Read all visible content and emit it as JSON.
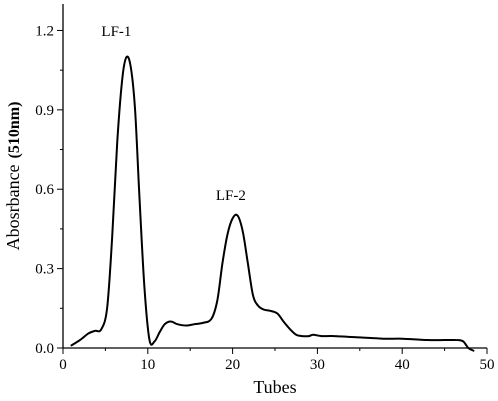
{
  "chart_data": {
    "type": "line",
    "title": "",
    "xlabel": "Tubes",
    "ylabel": "Abosrbance",
    "ylabel_unit": "(510nm)",
    "xlim": [
      0,
      50
    ],
    "ylim": [
      0,
      1.3
    ],
    "x_ticks": [
      0,
      10,
      20,
      30,
      40,
      50
    ],
    "y_ticks": [
      0.0,
      0.3,
      0.6,
      0.9,
      1.2
    ],
    "x_tick_labels": [
      "0",
      "10",
      "20",
      "30",
      "40",
      "50"
    ],
    "y_tick_labels": [
      "0.0",
      "0.3",
      "0.6",
      "0.9",
      "1.2"
    ],
    "grid": false,
    "legend": "none",
    "series": [
      {
        "color": "#000000",
        "x": [
          1.0,
          2.0,
          3.0,
          3.8,
          4.5,
          5.2,
          5.8,
          6.4,
          7.0,
          7.5,
          8.0,
          8.5,
          9.0,
          9.6,
          10.2,
          10.8,
          11.4,
          12.0,
          12.7,
          13.5,
          14.5,
          15.5,
          16.5,
          17.5,
          18.2,
          18.8,
          19.4,
          20.0,
          20.6,
          21.2,
          21.8,
          22.4,
          23.0,
          23.7,
          24.5,
          25.3,
          26.0,
          26.8,
          27.5,
          28.2,
          29.0,
          29.5,
          30.5,
          32.0,
          35.0,
          38.0,
          40.0,
          43.0,
          45.0,
          46.5,
          47.2,
          47.8,
          48.4
        ],
        "y": [
          0.01,
          0.03,
          0.055,
          0.065,
          0.07,
          0.15,
          0.42,
          0.78,
          1.02,
          1.1,
          1.06,
          0.9,
          0.58,
          0.23,
          0.03,
          0.025,
          0.06,
          0.09,
          0.1,
          0.09,
          0.085,
          0.09,
          0.095,
          0.11,
          0.18,
          0.32,
          0.43,
          0.49,
          0.5,
          0.44,
          0.32,
          0.2,
          0.16,
          0.145,
          0.14,
          0.13,
          0.1,
          0.07,
          0.05,
          0.045,
          0.045,
          0.05,
          0.045,
          0.045,
          0.04,
          0.035,
          0.035,
          0.03,
          0.03,
          0.03,
          0.025,
          0.0,
          -0.01
        ]
      }
    ],
    "annotations": [
      {
        "text": "LF-1",
        "x": 6.3,
        "y": 1.18
      },
      {
        "text": "LF-2",
        "x": 19.8,
        "y": 0.56
      }
    ]
  }
}
